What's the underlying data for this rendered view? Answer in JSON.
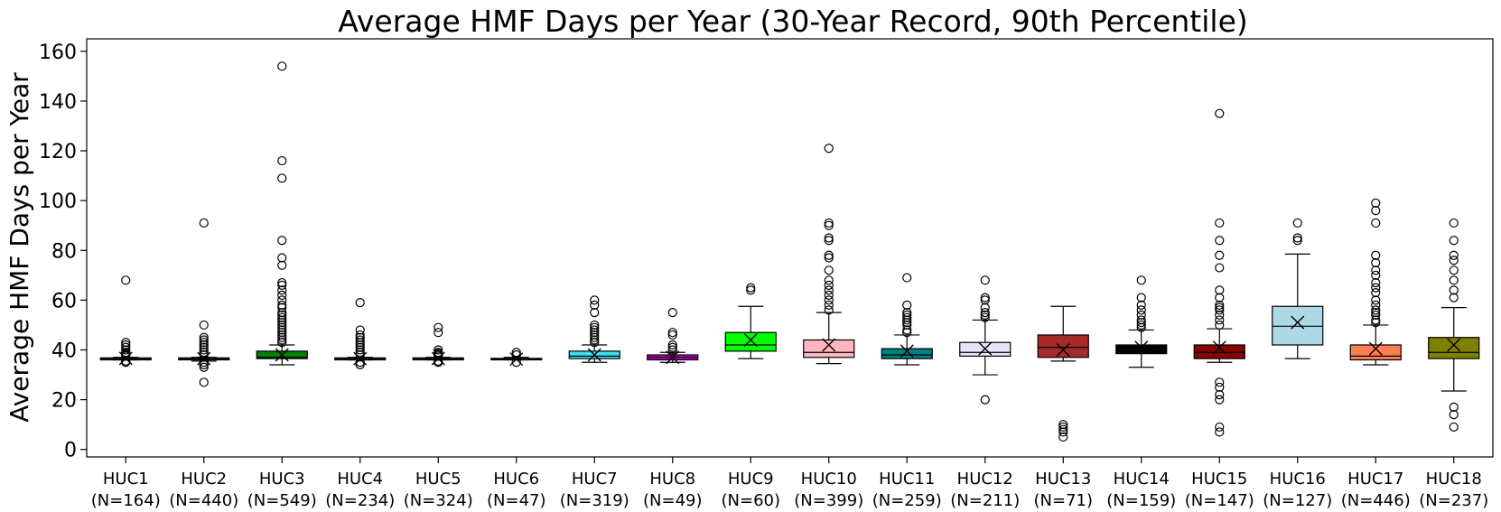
{
  "chart_data": {
    "type": "box",
    "title": "Average HMF Days per Year (30-Year Record, 90th Percentile)",
    "xlabel": "",
    "ylabel": "Average HMF Days per Year",
    "ylim": [
      -3,
      165
    ],
    "yticks": [
      0,
      20,
      40,
      60,
      80,
      100,
      120,
      140,
      160
    ],
    "grid": false,
    "legend": "none",
    "mean_marker": "x",
    "outlier_marker": "open-circle",
    "boxes": [
      {
        "label": "HUC1",
        "n_label": "(N=164)",
        "color": "#1f77b4",
        "min": 36,
        "q1": 36,
        "median": 36.5,
        "q3": 36.8,
        "max": 37,
        "mean": 36.6,
        "outliers": [
          35,
          35.5,
          37.5,
          38,
          38.5,
          39,
          40,
          41,
          42,
          43,
          68
        ]
      },
      {
        "label": "HUC2",
        "n_label": "(N=440)",
        "color": "#1f77b4",
        "min": 35.5,
        "q1": 36,
        "median": 36.5,
        "q3": 36.8,
        "max": 37,
        "mean": 36.5,
        "outliers": [
          27,
          33,
          34,
          35,
          38,
          39,
          40,
          41,
          42,
          43,
          44,
          45,
          50,
          91
        ]
      },
      {
        "label": "HUC3",
        "n_label": "(N=549)",
        "color": "#008000",
        "min": 34,
        "q1": 36.5,
        "median": 37,
        "q3": 39.5,
        "max": 42,
        "mean": 38,
        "outliers": [
          43,
          44,
          45,
          46,
          47,
          48,
          49,
          50,
          51,
          52,
          53,
          54,
          55,
          57,
          58,
          60,
          62,
          64,
          66,
          67,
          74,
          77,
          84,
          109,
          116,
          154
        ]
      },
      {
        "label": "HUC4",
        "n_label": "(N=234)",
        "color": "#1f77b4",
        "min": 36,
        "q1": 36,
        "median": 36.5,
        "q3": 36.8,
        "max": 37,
        "mean": 36.5,
        "outliers": [
          34,
          35,
          38,
          39,
          40,
          41,
          42,
          43,
          44,
          45,
          46,
          48,
          59
        ]
      },
      {
        "label": "HUC5",
        "n_label": "(N=324)",
        "color": "#1f77b4",
        "min": 36,
        "q1": 36,
        "median": 36.5,
        "q3": 36.8,
        "max": 37,
        "mean": 36.5,
        "outliers": [
          35,
          35.5,
          37.5,
          38,
          38.5,
          39,
          40,
          47,
          49
        ]
      },
      {
        "label": "HUC6",
        "n_label": "(N=47)",
        "color": "#1f77b4",
        "min": 36,
        "q1": 36,
        "median": 36.3,
        "q3": 36.6,
        "max": 37,
        "mean": 36.3,
        "outliers": [
          35,
          38,
          39
        ]
      },
      {
        "label": "HUC7",
        "n_label": "(N=319)",
        "color": "#40e0f0",
        "min": 35,
        "q1": 36.5,
        "median": 37.5,
        "q3": 39.5,
        "max": 42,
        "mean": 38,
        "outliers": [
          43,
          44,
          45,
          46,
          47,
          48,
          49,
          50,
          55,
          58,
          60
        ]
      },
      {
        "label": "HUC8",
        "n_label": "(N=49)",
        "color": "#c800c8",
        "min": 35,
        "q1": 36,
        "median": 37,
        "q3": 38,
        "max": 39,
        "mean": 37,
        "outliers": [
          40,
          41,
          42,
          46,
          47,
          55
        ]
      },
      {
        "label": "HUC9",
        "n_label": "(N=60)",
        "color": "#00ff00",
        "min": 36.5,
        "q1": 39.5,
        "median": 42,
        "q3": 47,
        "max": 57.5,
        "mean": 44,
        "outliers": [
          64,
          65
        ]
      },
      {
        "label": "HUC10",
        "n_label": "(N=399)",
        "color": "#ffb6c1",
        "min": 34.5,
        "q1": 37,
        "median": 39,
        "q3": 44,
        "max": 55,
        "mean": 42,
        "outliers": [
          56,
          58,
          60,
          62,
          64,
          66,
          68,
          72,
          77,
          78,
          84,
          85,
          90,
          91,
          121
        ]
      },
      {
        "label": "HUC11",
        "n_label": "(N=259)",
        "color": "#008080",
        "min": 34,
        "q1": 36.5,
        "median": 38,
        "q3": 40.5,
        "max": 46,
        "mean": 39.5,
        "outliers": [
          47,
          48,
          50,
          51,
          52,
          53,
          54,
          55,
          58,
          69
        ]
      },
      {
        "label": "HUC12",
        "n_label": "(N=211)",
        "color": "#e6e6fa",
        "min": 30,
        "q1": 37.5,
        "median": 39,
        "q3": 43,
        "max": 52,
        "mean": 40.5,
        "outliers": [
          20,
          53,
          54,
          55,
          57,
          60,
          61,
          68
        ]
      },
      {
        "label": "HUC13",
        "n_label": "(N=71)",
        "color": "#a52a2a",
        "min": 35.5,
        "q1": 37,
        "median": 41,
        "q3": 46,
        "max": 57.5,
        "mean": 40,
        "outliers": [
          5,
          7,
          8,
          9,
          10
        ]
      },
      {
        "label": "HUC14",
        "n_label": "(N=159)",
        "color": "#000000",
        "min": 33,
        "q1": 38.5,
        "median": 41,
        "q3": 42,
        "max": 48,
        "mean": 41,
        "outliers": [
          49,
          50,
          51,
          52,
          54,
          56,
          58,
          61,
          68
        ]
      },
      {
        "label": "HUC15",
        "n_label": "(N=147)",
        "color": "#8b0000",
        "min": 35,
        "q1": 36.5,
        "median": 39,
        "q3": 42,
        "max": 48.5,
        "mean": 41,
        "outliers": [
          7,
          9,
          20,
          22,
          25,
          27,
          50,
          52,
          54,
          56,
          57,
          58,
          61,
          64,
          73,
          78,
          84,
          91,
          135
        ]
      },
      {
        "label": "HUC16",
        "n_label": "(N=127)",
        "color": "#add8e6",
        "min": 36.5,
        "q1": 42,
        "median": 49.5,
        "q3": 57.5,
        "max": 78.5,
        "mean": 51,
        "outliers": [
          84,
          85,
          91
        ]
      },
      {
        "label": "HUC17",
        "n_label": "(N=446)",
        "color": "#ff7f50",
        "min": 34,
        "q1": 36,
        "median": 37.5,
        "q3": 42,
        "max": 50,
        "mean": 40.5,
        "outliers": [
          51,
          52,
          54,
          55,
          56,
          58,
          60,
          63,
          65,
          67,
          70,
          72,
          75,
          78,
          91,
          96,
          99
        ]
      },
      {
        "label": "HUC18",
        "n_label": "(N=237)",
        "color": "#808000",
        "min": 23.5,
        "q1": 36.5,
        "median": 39,
        "q3": 45,
        "max": 57,
        "mean": 42,
        "outliers": [
          9,
          14,
          17,
          61,
          64,
          68,
          72,
          76,
          78,
          84,
          91
        ]
      }
    ]
  }
}
